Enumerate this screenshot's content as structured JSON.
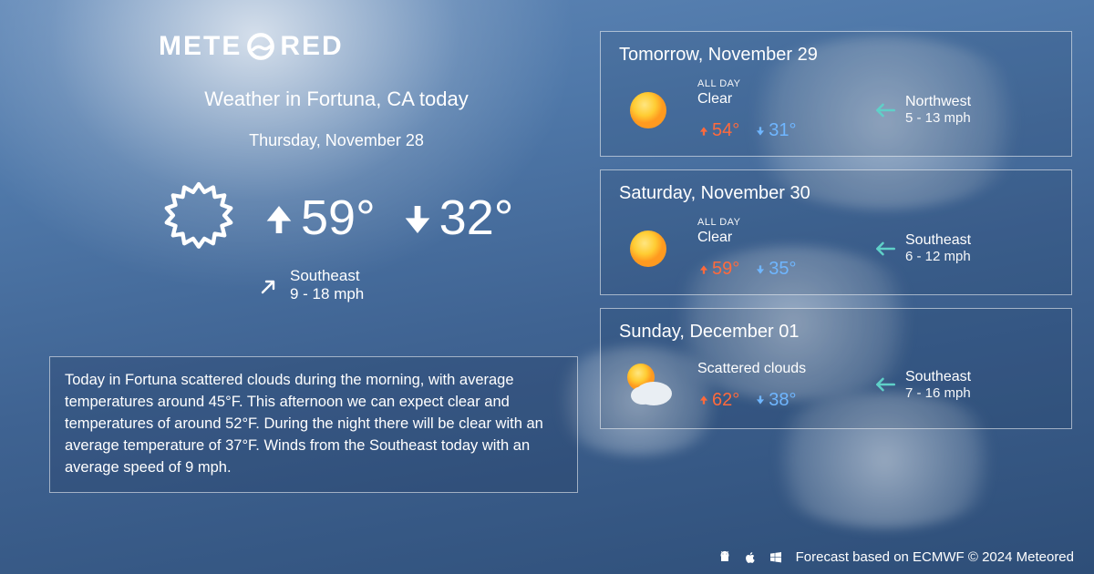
{
  "brand": {
    "name_left": "METE",
    "name_right": "RED"
  },
  "today": {
    "title": "Weather in Fortuna, CA today",
    "date": "Thursday, November 28",
    "high": "59°",
    "low": "32°",
    "wind_direction": "Southeast",
    "wind_speed": "9 - 18 mph",
    "wind_arrow_rotation_deg": -45,
    "description": "Today in Fortuna scattered clouds during the morning, with average temperatures around 45°F. This afternoon we can expect clear and temperatures of around 52°F. During the night there will be clear with an average temperature of 37°F. Winds from the Southeast today with an average speed of 9 mph."
  },
  "forecast": [
    {
      "date": "Tomorrow, November 29",
      "period_label": "ALL DAY",
      "condition": "Clear",
      "icon": "sun",
      "high": "54°",
      "low": "31°",
      "wind_direction": "Northwest",
      "wind_speed": "5 - 13 mph",
      "wind_arrow_rotation_deg": 135
    },
    {
      "date": "Saturday, November 30",
      "period_label": "ALL DAY",
      "condition": "Clear",
      "icon": "sun",
      "high": "59°",
      "low": "35°",
      "wind_direction": "Southeast",
      "wind_speed": "6 - 12 mph",
      "wind_arrow_rotation_deg": 135
    },
    {
      "date": "Sunday, December 01",
      "period_label": "",
      "condition": "Scattered clouds",
      "icon": "partly-cloudy",
      "high": "62°",
      "low": "38°",
      "wind_direction": "Southeast",
      "wind_speed": "7 - 16 mph",
      "wind_arrow_rotation_deg": 135
    }
  ],
  "footer": {
    "text": "Forecast based on ECMWF © 2024 Meteored"
  },
  "colors": {
    "high_temp": "#ff6a3c",
    "low_temp": "#6fb6ff",
    "wind_arrow": "#5fd0c8",
    "card_border": "rgba(255,255,255,0.55)",
    "text": "#ffffff",
    "sun_fill": "#ffcc33",
    "sun_glow": "#ff9a1f"
  }
}
